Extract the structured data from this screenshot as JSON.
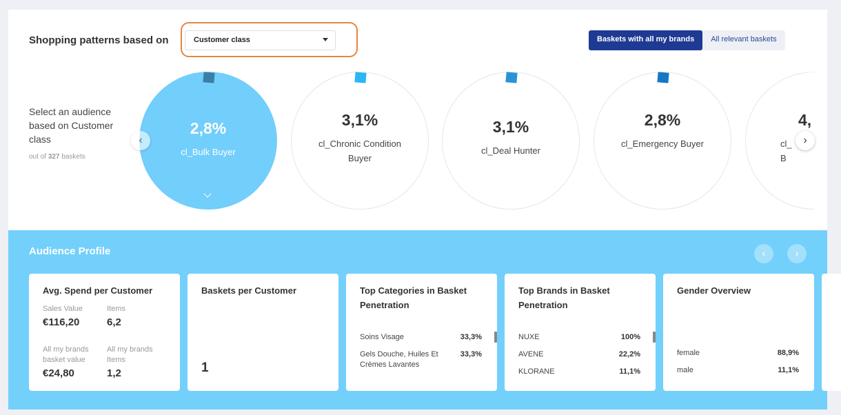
{
  "header": {
    "title": "Shopping patterns based on",
    "select_value": "Customer class",
    "toggle": [
      "Baskets with all my brands",
      "All relevant baskets"
    ]
  },
  "side": {
    "text": "Select an audience based on Customer class",
    "out_of_prefix": "out of",
    "out_of_count": "327",
    "out_of_suffix": "baskets"
  },
  "audiences": [
    {
      "pct": "2,8%",
      "label": "cl_Bulk Buyer",
      "mark": "#3a7fa6",
      "active": true
    },
    {
      "pct": "3,1%",
      "label": "cl_Chronic Condition Buyer",
      "mark": "#2bb6f5"
    },
    {
      "pct": "3,1%",
      "label": "cl_Deal Hunter",
      "mark": "#2a93d8"
    },
    {
      "pct": "2,8%",
      "label": "cl_Emergency Buyer",
      "mark": "#1777c4"
    },
    {
      "pct": "4,",
      "label": "cl_ B",
      "mark": "#ffffff"
    }
  ],
  "profile": {
    "title": "Audience Profile",
    "avg": {
      "title": "Avg. Spend per Customer",
      "sales_label": "Sales Value",
      "sales": "€116,20",
      "items_label": "Items",
      "items": "6,2",
      "brand_value_label": "All my brands basket value",
      "brand_value": "€24,80",
      "brand_items_label": "All my brands Items",
      "brand_items": "1,2"
    },
    "baskets": {
      "title": "Baskets per Customer",
      "value": "1"
    },
    "categories": {
      "title": "Top Categories in Basket Penetration",
      "rows": [
        {
          "name": "Soins Visage",
          "value": "33,3%"
        },
        {
          "name": "Gels Douche, Huiles Et Crèmes Lavantes",
          "value": "33,3%"
        }
      ]
    },
    "brands": {
      "title": "Top Brands in Basket Penetration",
      "rows": [
        {
          "name": "NUXE",
          "value": "100%"
        },
        {
          "name": "AVENE",
          "value": "22,2%"
        },
        {
          "name": "KLORANE",
          "value": "11,1%"
        }
      ]
    },
    "gender": {
      "title": "Gender Overview",
      "rows": [
        {
          "name": "female",
          "value": "88,9%"
        },
        {
          "name": "male",
          "value": "11,1%"
        }
      ]
    }
  },
  "colors": {
    "accent": "#1f3a93",
    "audience_bg": "#72d0fb",
    "highlight": "#e8843f"
  }
}
